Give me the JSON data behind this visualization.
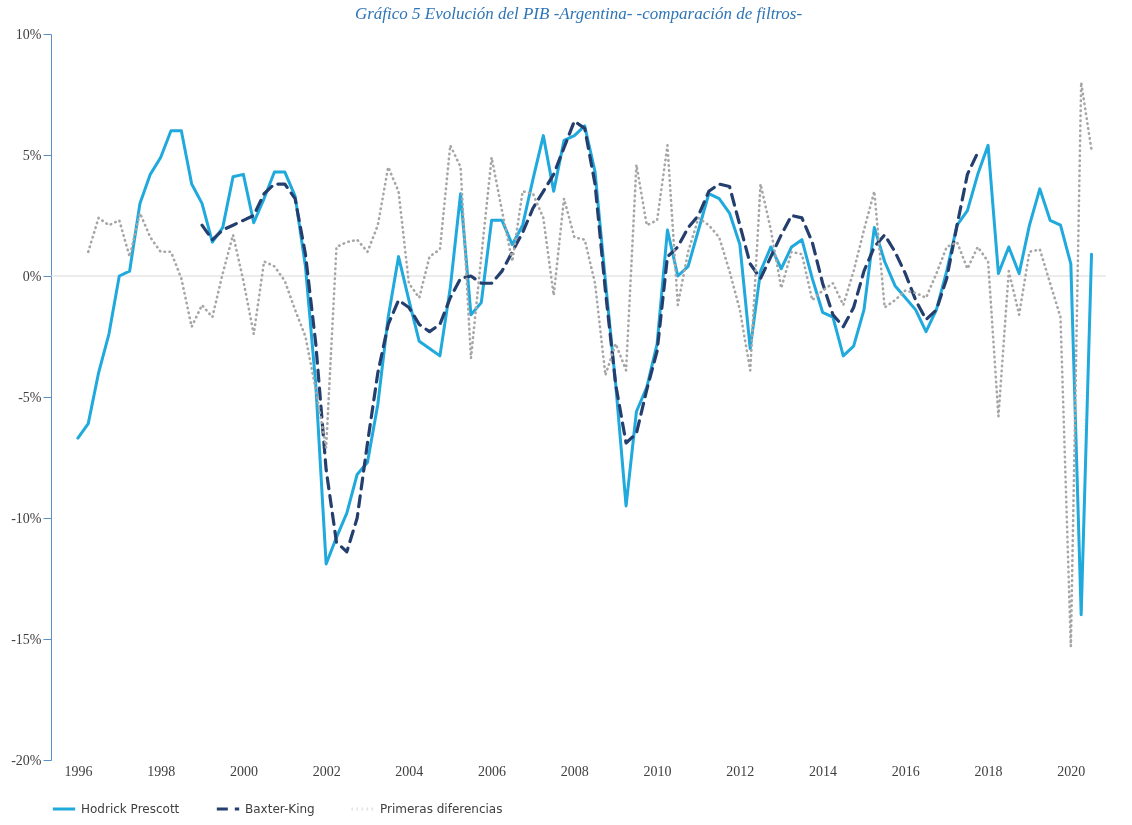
{
  "chart_data": {
    "type": "line",
    "title": "Gráfico 5 Evolución del PIB -Argentina- -comparación de filtros-",
    "x": [
      1996,
      1996.25,
      1996.5,
      1996.75,
      1997,
      1997.25,
      1997.5,
      1997.75,
      1998,
      1998.25,
      1998.5,
      1998.75,
      1999,
      1999.25,
      1999.5,
      1999.75,
      2000,
      2000.25,
      2000.5,
      2000.75,
      2001,
      2001.25,
      2001.5,
      2001.75,
      2002,
      2002.25,
      2002.5,
      2002.75,
      2003,
      2003.25,
      2003.5,
      2003.75,
      2004,
      2004.25,
      2004.5,
      2004.75,
      2005,
      2005.25,
      2005.5,
      2005.75,
      2006,
      2006.25,
      2006.5,
      2006.75,
      2007,
      2007.25,
      2007.5,
      2007.75,
      2008,
      2008.25,
      2008.5,
      2008.75,
      2009,
      2009.25,
      2009.5,
      2009.75,
      2010,
      2010.25,
      2010.5,
      2010.75,
      2011,
      2011.25,
      2011.5,
      2011.75,
      2012,
      2012.25,
      2012.5,
      2012.75,
      2013,
      2013.25,
      2013.5,
      2013.75,
      2014,
      2014.25,
      2014.5,
      2014.75,
      2015,
      2015.25,
      2015.5,
      2015.75,
      2016,
      2016.25,
      2016.5,
      2016.75,
      2017,
      2017.25,
      2017.5,
      2017.75,
      2018,
      2018.25,
      2018.5,
      2018.75,
      2019,
      2019.25,
      2019.5,
      2019.75,
      2020,
      2020.25,
      2020.5
    ],
    "series": [
      {
        "name": "Hodrick Prescott",
        "color": "#1fa9dc",
        "line_style": "solid",
        "values": [
          -6.7,
          -6.1,
          -4.0,
          -2.4,
          0.0,
          0.2,
          3.0,
          4.2,
          4.9,
          6.0,
          6.0,
          3.8,
          3.0,
          1.4,
          2.0,
          4.1,
          4.2,
          2.2,
          3.2,
          4.3,
          4.3,
          3.3,
          0.4,
          -4.5,
          -11.9,
          -10.8,
          -9.8,
          -8.2,
          -7.7,
          -5.3,
          -1.7,
          0.8,
          -1.0,
          -2.7,
          -3.0,
          -3.3,
          -0.5,
          3.4,
          -1.6,
          -1.1,
          2.3,
          2.3,
          1.3,
          2.1,
          4.0,
          5.8,
          3.5,
          5.6,
          5.8,
          6.2,
          4.3,
          -0.2,
          -4.5,
          -9.5,
          -5.6,
          -4.6,
          -2.8,
          1.9,
          0.0,
          0.4,
          1.9,
          3.4,
          3.2,
          2.6,
          1.3,
          -3.0,
          0.2,
          1.2,
          0.3,
          1.2,
          1.5,
          -0.1,
          -1.5,
          -1.7,
          -3.3,
          -2.9,
          -1.4,
          2.0,
          0.6,
          -0.4,
          -0.9,
          -1.4,
          -2.3,
          -1.4,
          0.2,
          2.1,
          2.7,
          4.2,
          5.4,
          0.1,
          1.2,
          0.1,
          2.1,
          3.6,
          2.3,
          2.1,
          0.5,
          -14.0,
          0.9
        ]
      },
      {
        "name": "Baxter-King",
        "color": "#243f6e",
        "line_style": "dashed",
        "values": [
          null,
          null,
          null,
          null,
          null,
          null,
          null,
          null,
          null,
          null,
          null,
          null,
          2.1,
          1.5,
          1.9,
          2.1,
          2.3,
          2.5,
          3.4,
          3.8,
          3.8,
          3.2,
          0.9,
          -2.8,
          -8.0,
          -11.0,
          -11.4,
          -10.0,
          -6.9,
          -4.0,
          -2.0,
          -1.0,
          -1.3,
          -2.0,
          -2.3,
          -2.0,
          -0.9,
          -0.1,
          0.0,
          -0.3,
          -0.3,
          0.2,
          1.0,
          1.8,
          2.8,
          3.5,
          4.2,
          5.3,
          6.4,
          6.1,
          3.8,
          -0.6,
          -4.5,
          -6.9,
          -6.5,
          -4.7,
          -3.1,
          0.8,
          1.2,
          2.0,
          2.5,
          3.5,
          3.8,
          3.7,
          2.1,
          0.5,
          -0.1,
          0.8,
          1.7,
          2.5,
          2.4,
          1.4,
          -0.3,
          -1.6,
          -2.1,
          -1.3,
          0.2,
          1.2,
          1.7,
          1.0,
          0.1,
          -1.0,
          -1.8,
          -1.4,
          -0.1,
          2.1,
          4.2,
          5.1,
          null,
          null,
          null,
          null,
          null,
          null,
          null,
          null,
          null,
          null,
          null
        ]
      },
      {
        "name": "Primeras diferencias",
        "color": "#a6a6a6",
        "line_style": "dotted",
        "values": [
          null,
          1.0,
          2.4,
          2.1,
          2.3,
          0.8,
          2.6,
          1.6,
          1.0,
          1.0,
          -0.1,
          -2.1,
          -1.2,
          -1.7,
          0.1,
          1.7,
          -0.2,
          -2.4,
          0.6,
          0.4,
          -0.2,
          -1.4,
          -2.5,
          -4.7,
          -7.1,
          1.2,
          1.4,
          1.5,
          1.0,
          2.1,
          4.5,
          3.5,
          -0.3,
          -0.9,
          0.8,
          1.1,
          5.4,
          4.5,
          -3.4,
          0.8,
          4.9,
          2.7,
          0.6,
          3.5,
          3.4,
          2.4,
          -0.8,
          3.2,
          1.6,
          1.5,
          -0.3,
          -4.1,
          -2.8,
          -3.9,
          4.6,
          2.1,
          2.3,
          5.4,
          -1.2,
          1.0,
          2.4,
          2.1,
          1.6,
          0.2,
          -1.4,
          -3.9,
          3.8,
          1.9,
          -0.5,
          1.0,
          0.9,
          -1.0,
          -0.6,
          -0.3,
          -1.2,
          0.2,
          1.9,
          3.5,
          -1.3,
          -1.0,
          -0.6,
          -0.7,
          -0.9,
          0.1,
          1.2,
          1.4,
          0.3,
          1.2,
          0.6,
          -5.8,
          0.2,
          -1.6,
          1.0,
          1.1,
          -0.3,
          -1.7,
          -15.3,
          8.0,
          5.2
        ]
      }
    ],
    "xlim": [
      1995.35,
      2020.85
    ],
    "xticks": [
      1996,
      1998,
      2000,
      2002,
      2004,
      2006,
      2008,
      2010,
      2012,
      2014,
      2016,
      2018,
      2020
    ],
    "ylim": [
      -20,
      10
    ],
    "yticks": [
      {
        "value": -20,
        "label": "-20%"
      },
      {
        "value": -15,
        "label": "-15%"
      },
      {
        "value": -10,
        "label": "-10%"
      },
      {
        "value": -5,
        "label": "-5%"
      },
      {
        "value": 0,
        "label": "0%"
      },
      {
        "value": 5,
        "label": "5%"
      },
      {
        "value": 10,
        "label": "10%"
      }
    ],
    "ref_lines": [
      {
        "axis": "y",
        "value": 0,
        "color": "#d9d9d9"
      }
    ],
    "grid": false,
    "legend": "bottom"
  }
}
